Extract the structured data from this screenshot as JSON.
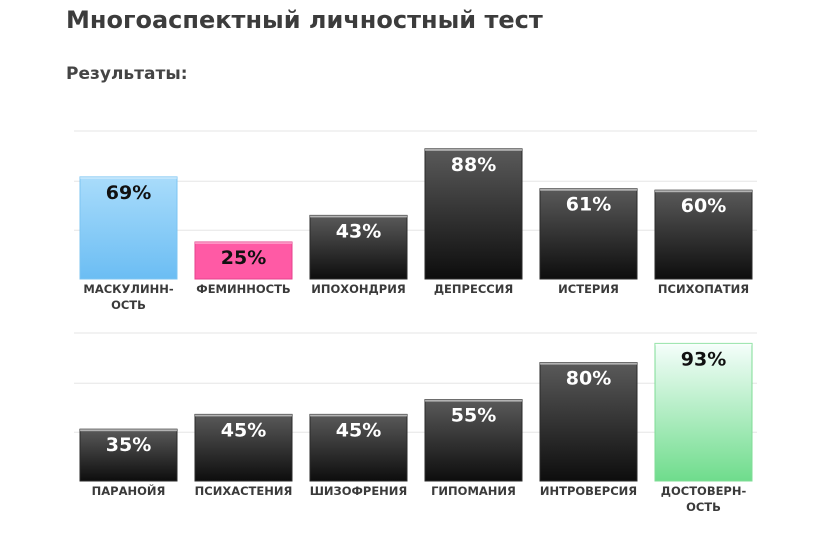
{
  "page": {
    "title": "Многоаспектный личностный тест",
    "subtitle": "Результаты:"
  },
  "colors": {
    "dark_top": "#5a5a5a",
    "dark_bottom": "#0d0d0d",
    "blue_top": "#a9dcfb",
    "blue_bottom": "#6bbdf3",
    "pink": "#ff5aa5",
    "green_top": "#f5fefb",
    "green_bottom": "#6fdc8c",
    "gridline": "#e6e6e6"
  },
  "chart_data": [
    {
      "type": "bar",
      "ylim": [
        0,
        100
      ],
      "categories": [
        "МАСКУЛИНН-|ОСТЬ",
        "ФЕМИННОСТЬ",
        "ИПОХОНДРИЯ",
        "ДЕПРЕССИЯ",
        "ИСТЕРИЯ",
        "ПСИХОПАТИЯ"
      ],
      "values": [
        69,
        25,
        43,
        88,
        61,
        60
      ],
      "value_labels": [
        "69%",
        "25%",
        "43%",
        "88%",
        "61%",
        "60%"
      ],
      "styles": [
        "blue",
        "pink",
        "dark",
        "dark",
        "dark",
        "dark"
      ]
    },
    {
      "type": "bar",
      "ylim": [
        0,
        100
      ],
      "categories": [
        "ПАРАНОЙЯ",
        "ПСИХАСТЕНИЯ",
        "ШИЗОФРЕНИЯ",
        "ГИПОМАНИЯ",
        "ИНТРОВЕРСИЯ",
        "ДОСТОВЕРН-|ОСТЬ"
      ],
      "values": [
        35,
        45,
        45,
        55,
        80,
        93
      ],
      "value_labels": [
        "35%",
        "45%",
        "45%",
        "55%",
        "80%",
        "93%"
      ],
      "styles": [
        "dark",
        "dark",
        "dark",
        "dark",
        "dark",
        "green"
      ]
    }
  ]
}
